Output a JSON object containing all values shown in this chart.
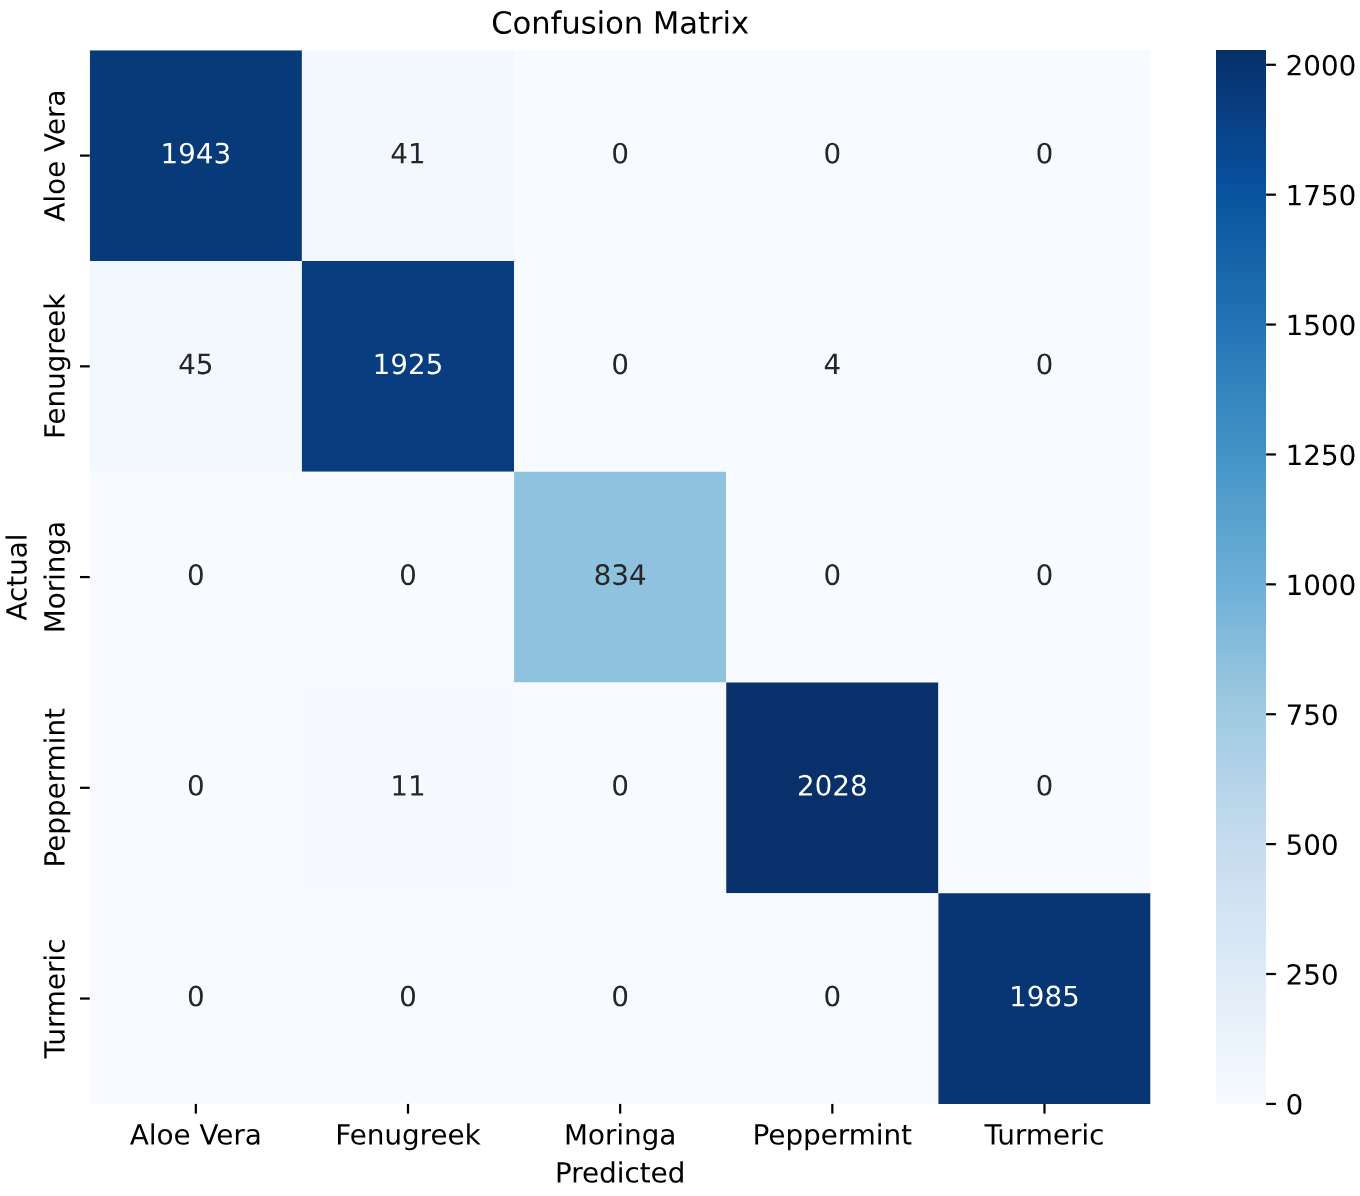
{
  "chart_data": {
    "type": "heatmap",
    "title": "Confusion Matrix",
    "xlabel": "Predicted",
    "ylabel": "Actual",
    "categories": [
      "Aloe Vera",
      "Fenugreek",
      "Moringa",
      "Peppermint",
      "Turmeric"
    ],
    "y_categories": [
      "Aloe Vera",
      "Fenugreek",
      "Moringa",
      "Peppermint",
      "Turmeric"
    ],
    "cells": [
      [
        1943,
        41,
        0,
        0,
        0
      ],
      [
        45,
        1925,
        0,
        4,
        0
      ],
      [
        0,
        0,
        834,
        0,
        0
      ],
      [
        0,
        11,
        0,
        2028,
        0
      ],
      [
        0,
        0,
        0,
        0,
        1985
      ]
    ],
    "clim": [
      0,
      2028
    ],
    "cticks": [
      0,
      250,
      500,
      750,
      1000,
      1250,
      1500,
      1750,
      2000
    ],
    "data_labels": true
  }
}
